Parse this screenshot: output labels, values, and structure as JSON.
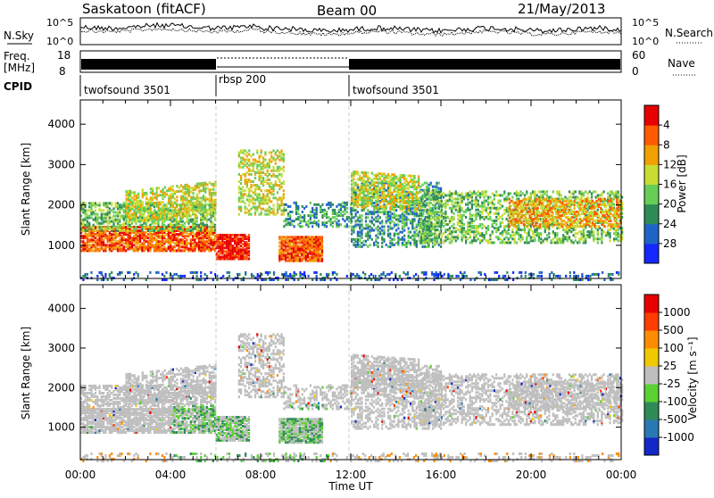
{
  "header": {
    "station": "Saskatoon (fitACF)",
    "beam": "Beam 00",
    "date": "21/May/2013"
  },
  "top_panels": {
    "nsky": {
      "label": "N.Sky",
      "right_label": "N.Search",
      "left_ticks": [
        "10^5",
        "10^0"
      ],
      "right_ticks": [
        "10^5",
        "10^0"
      ]
    },
    "freq": {
      "label_line1": "Freq.",
      "label_line2": "[MHz]",
      "right_label": "Nave",
      "left_ticks": [
        "18",
        "8"
      ],
      "right_ticks": [
        "60",
        "0"
      ]
    },
    "cpid": {
      "label": "CPID",
      "segments": [
        {
          "name": "twofsound 3501",
          "start": 0,
          "end": 6
        },
        {
          "name": "rbsp 200",
          "start": 6,
          "end": 12
        },
        {
          "name": "twofsound 3501",
          "start": 12,
          "end": 24
        }
      ]
    }
  },
  "chart_data": [
    {
      "type": "heatmap",
      "title": "",
      "ylabel": "Slant Range [km]",
      "xlabel": "",
      "x_range_hours": [
        0,
        24
      ],
      "ylim": [
        180,
        4600
      ],
      "y_ticks": [
        "1000",
        "2000",
        "3000",
        "4000"
      ],
      "colorbar": {
        "label": "Power [dB]",
        "ticks": [
          "4",
          "8",
          "12",
          "16",
          "20",
          "24",
          "28"
        ],
        "colors": [
          "#1428ff",
          "#1e64c8",
          "#2e8b57",
          "#66cd55",
          "#c8dc32",
          "#f0a000",
          "#ff5a00",
          "#e60000"
        ]
      }
    },
    {
      "type": "heatmap",
      "title": "",
      "ylabel": "Slant Range [km]",
      "xlabel": "Time UT",
      "x_range_hours": [
        0,
        24
      ],
      "ylim": [
        180,
        4600
      ],
      "y_ticks": [
        "1000",
        "2000",
        "3000",
        "4000"
      ],
      "x_ticks": [
        "00:00",
        "04:00",
        "08:00",
        "12:00",
        "16:00",
        "20:00",
        "00:00"
      ],
      "colorbar": {
        "label": "Velocity [m s⁻¹]",
        "ticks": [
          "1000",
          "500",
          "100",
          "25",
          "-25",
          "-100",
          "-500",
          "-1000"
        ],
        "colors": [
          "#1428c8",
          "#2878b4",
          "#2e8b57",
          "#5ad232",
          "#bebebe",
          "#f0c800",
          "#ff8c00",
          "#ff3c00",
          "#e60000"
        ]
      }
    }
  ]
}
